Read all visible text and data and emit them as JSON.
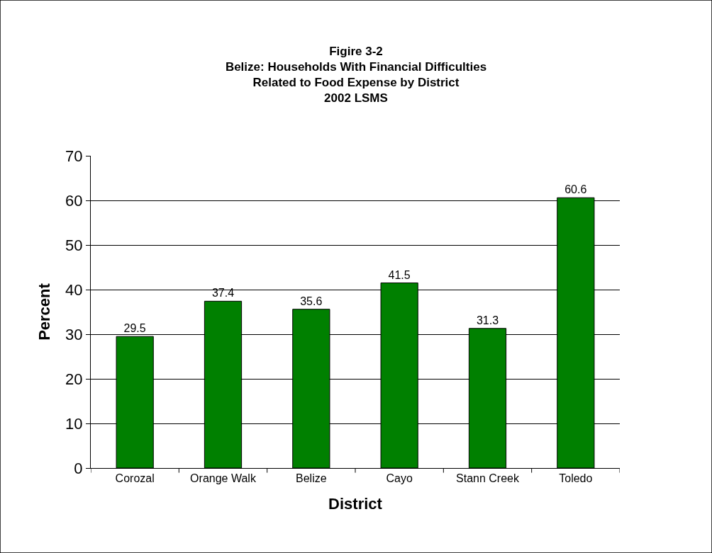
{
  "chart_data": {
    "type": "bar",
    "title": "Figire 3-2\nBelize: Households With Financial Difficulties\nRelated to Food Expense by District\n2002 LSMS",
    "xlabel": "District",
    "ylabel": "Percent",
    "categories": [
      "Corozal",
      "Orange Walk",
      "Belize",
      "Cayo",
      "Stann Creek",
      "Toledo"
    ],
    "values": [
      29.5,
      37.4,
      35.6,
      41.5,
      31.3,
      60.6
    ],
    "color": "#008000",
    "ylim": [
      0,
      70
    ],
    "yticks": [
      0,
      10,
      20,
      30,
      40,
      50,
      60,
      70
    ],
    "grid": "y",
    "data_labels": true,
    "legend": false
  }
}
